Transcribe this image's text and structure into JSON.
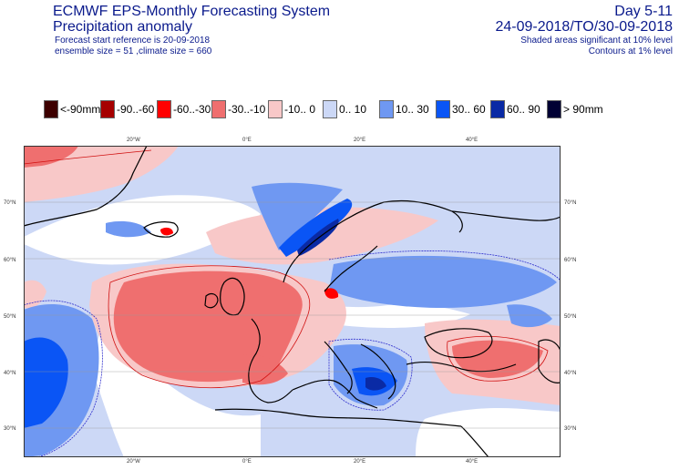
{
  "header": {
    "title": "ECMWF EPS-Monthly Forecasting System",
    "subtitle": "Precipitation anomaly",
    "forecast_ref": "Forecast start reference is 20-09-2018",
    "ensemble": "ensemble size = 51  ,climate size = 660",
    "day_range": "Day 5-11",
    "date_range": "24-09-2018/TO/30-09-2018",
    "shaded_note": "Shaded areas significant at 10% level",
    "contour_note": "Contours at 1% level"
  },
  "legend": [
    {
      "label": "<-90mm",
      "color": "#3d0000"
    },
    {
      "label": "-90..-60",
      "color": "#a60000"
    },
    {
      "label": "-60..-30",
      "color": "#ff0000"
    },
    {
      "label": "-30..-10",
      "color": "#ef6f6f"
    },
    {
      "label": "-10..  0",
      "color": "#f8c8c8"
    },
    {
      "label": "0.. 10",
      "color": "#ccd8f6"
    },
    {
      "label": "10.. 30",
      "color": "#6f98f2"
    },
    {
      "label": "30.. 60",
      "color": "#0a55f5"
    },
    {
      "label": "60.. 90",
      "color": "#0a2aa5"
    },
    {
      "label": "> 90mm",
      "color": "#000033"
    }
  ],
  "map": {
    "lon_labels_top": [
      "20°W",
      "0°E",
      "20°E",
      "40°E"
    ],
    "lon_labels_bottom": [
      "20°W",
      "0°E",
      "20°E",
      "40°E"
    ],
    "lat_labels_left": [
      "70°N",
      "60°N",
      "50°N",
      "40°N",
      "30°N"
    ],
    "lat_labels_right": [
      "70°N",
      "60°N",
      "50°N",
      "40°N",
      "30°N"
    ],
    "colors": {
      "land_outline": "#000000",
      "dry_contour": "#d01010",
      "wet_contour": "#2a2acc",
      "background": "#ffffff"
    }
  }
}
